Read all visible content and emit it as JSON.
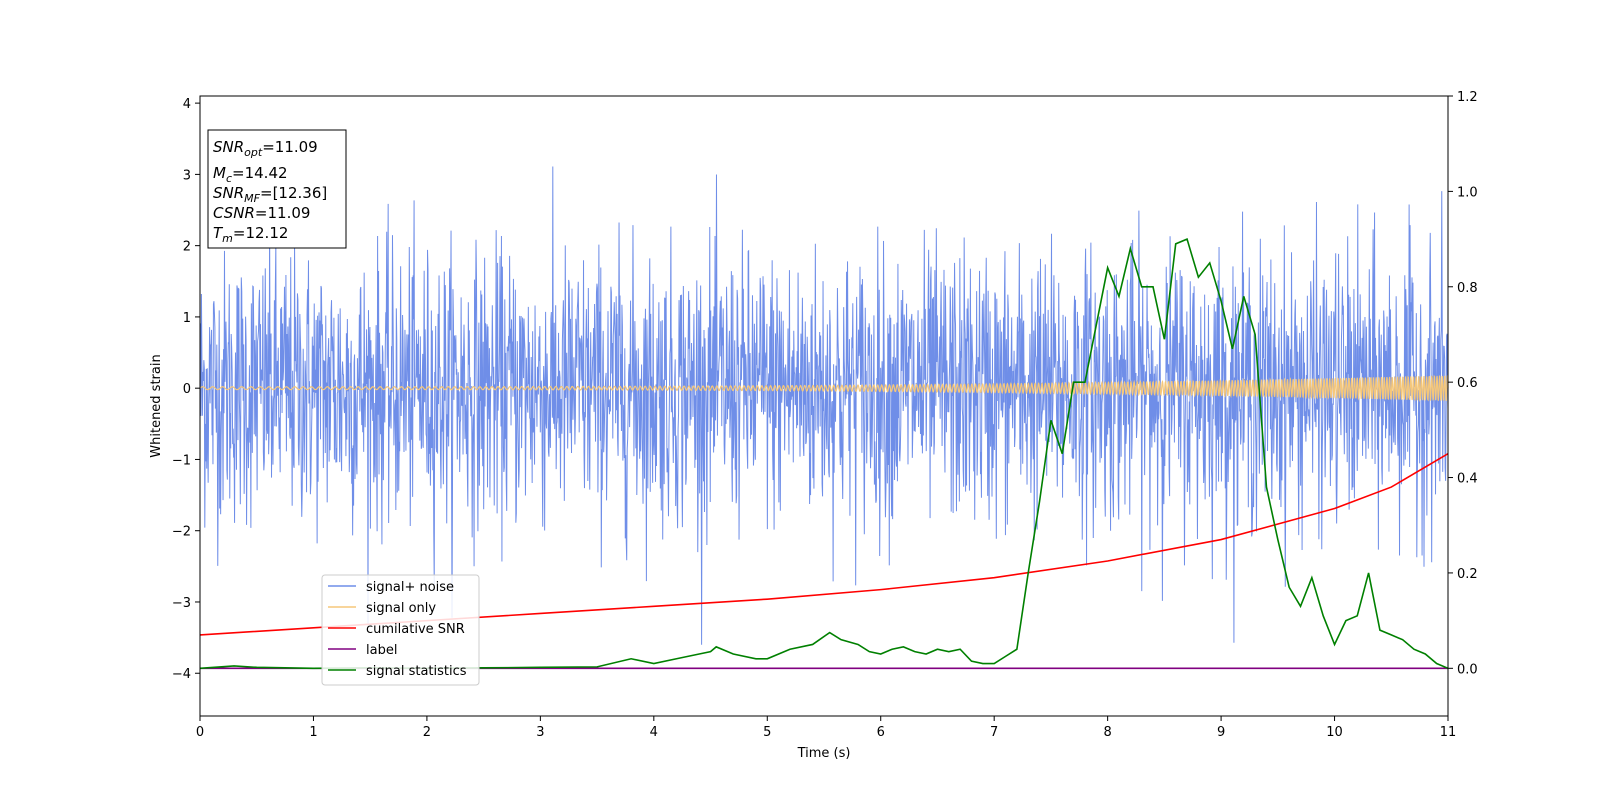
{
  "chart_data": {
    "type": "line",
    "xlabel": "Time (s)",
    "ylabel": "Whitened strain",
    "xlim": [
      0,
      11
    ],
    "ylim_left": [
      -4.6,
      4.1
    ],
    "ylim_right": [
      -0.1,
      1.2
    ],
    "x_ticks": [
      0,
      1,
      2,
      3,
      4,
      5,
      6,
      7,
      8,
      9,
      10,
      11
    ],
    "y_ticks_left": [
      -4,
      -3,
      -2,
      -1,
      0,
      1,
      2,
      3,
      4
    ],
    "y_ticks_right": [
      0.0,
      0.2,
      0.4,
      0.6,
      0.8,
      1.0,
      1.2
    ],
    "grid": false,
    "legend_location": "lower-left",
    "stats_box": {
      "snr_opt": {
        "base": "SNR",
        "sub": "opt",
        "value": "=11.09"
      },
      "mc": {
        "base": "M",
        "sub": "c",
        "value": "=14.42"
      },
      "snr_mf": {
        "base": "SNR",
        "sub": "MF",
        "value": "=[12.36]"
      },
      "csnr": {
        "base": "CSNR",
        "sub": "",
        "value": "=11.09"
      },
      "tm": {
        "base": "T",
        "sub": "m",
        "value": "=12.12"
      }
    },
    "series": [
      {
        "name": "signal+ noise",
        "axis": "left",
        "color": "#6f8ee8",
        "style": "noise",
        "approx_envelope": {
          "typical_amplitude": 1.3,
          "max": 3.65,
          "min": -3.6
        }
      },
      {
        "name": "signal only",
        "axis": "left",
        "color": "#f5c77a",
        "style": "chirp",
        "amplitude_start": 0.02,
        "amplitude_end": 0.18
      },
      {
        "name": "cumilative SNR",
        "axis": "right",
        "color": "#ff0000",
        "x": [
          0,
          1,
          2,
          3,
          4,
          5,
          6,
          7,
          8,
          9,
          10,
          10.5,
          11
        ],
        "y": [
          0.07,
          0.085,
          0.1,
          0.115,
          0.13,
          0.145,
          0.165,
          0.19,
          0.225,
          0.27,
          0.335,
          0.38,
          0.45
        ]
      },
      {
        "name": "label",
        "axis": "right",
        "color": "#800080",
        "x": [
          0,
          11
        ],
        "y": [
          0.0,
          0.0
        ]
      },
      {
        "name": "signal statistics",
        "axis": "right",
        "color": "#008000",
        "x": [
          0,
          0.3,
          0.5,
          1.0,
          1.5,
          2.0,
          2.5,
          3.0,
          3.5,
          3.8,
          4.0,
          4.2,
          4.4,
          4.5,
          4.55,
          4.7,
          4.9,
          5.0,
          5.2,
          5.4,
          5.55,
          5.65,
          5.8,
          5.9,
          6.0,
          6.1,
          6.2,
          6.3,
          6.4,
          6.5,
          6.6,
          6.7,
          6.8,
          6.9,
          7.0,
          7.1,
          7.2,
          7.3,
          7.4,
          7.5,
          7.6,
          7.7,
          7.8,
          7.9,
          8.0,
          8.1,
          8.2,
          8.3,
          8.4,
          8.5,
          8.6,
          8.7,
          8.8,
          8.9,
          9.0,
          9.1,
          9.2,
          9.3,
          9.4,
          9.5,
          9.6,
          9.7,
          9.8,
          9.9,
          10.0,
          10.1,
          10.2,
          10.3,
          10.4,
          10.5,
          10.6,
          10.7,
          10.8,
          10.9,
          11.0
        ],
        "y": [
          0.0,
          0.005,
          0.002,
          0.0,
          0.001,
          0.0,
          0.001,
          0.002,
          0.003,
          0.02,
          0.01,
          0.02,
          0.03,
          0.035,
          0.045,
          0.03,
          0.02,
          0.02,
          0.04,
          0.05,
          0.075,
          0.06,
          0.05,
          0.035,
          0.03,
          0.04,
          0.045,
          0.035,
          0.03,
          0.04,
          0.035,
          0.04,
          0.015,
          0.01,
          0.01,
          0.025,
          0.04,
          0.2,
          0.35,
          0.52,
          0.45,
          0.6,
          0.6,
          0.72,
          0.84,
          0.78,
          0.88,
          0.8,
          0.8,
          0.69,
          0.89,
          0.9,
          0.82,
          0.85,
          0.77,
          0.67,
          0.78,
          0.7,
          0.38,
          0.27,
          0.17,
          0.13,
          0.19,
          0.11,
          0.05,
          0.1,
          0.11,
          0.2,
          0.08,
          0.07,
          0.06,
          0.04,
          0.03,
          0.01,
          0.0
        ]
      }
    ]
  }
}
